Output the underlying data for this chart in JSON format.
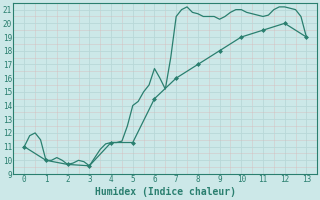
{
  "xlabel": "Humidex (Indice chaleur)",
  "xlim": [
    -0.5,
    13.5
  ],
  "ylim": [
    9,
    21.5
  ],
  "yticks": [
    9,
    10,
    11,
    12,
    13,
    14,
    15,
    16,
    17,
    18,
    19,
    20,
    21
  ],
  "xticks": [
    0,
    1,
    2,
    3,
    4,
    5,
    6,
    7,
    8,
    9,
    10,
    11,
    12,
    13
  ],
  "line1_x": [
    0,
    0.25,
    0.5,
    0.75,
    1.0,
    1.25,
    1.5,
    1.75,
    2.0,
    2.25,
    2.5,
    2.75,
    3.0,
    3.25,
    3.5,
    3.75,
    4.0,
    4.25,
    4.5,
    4.75,
    5.0,
    5.25,
    5.5,
    5.75,
    6.0,
    6.25,
    6.5,
    6.75,
    7.0,
    7.25,
    7.5,
    7.75,
    8.0,
    8.25,
    8.5,
    8.75,
    9.0,
    9.25,
    9.5,
    9.75,
    10.0,
    10.25,
    10.5,
    10.75,
    11.0,
    11.25,
    11.5,
    11.75,
    12.0,
    12.25,
    12.5,
    12.75,
    13.0
  ],
  "line1_y": [
    11,
    11.8,
    12.0,
    11.5,
    10.0,
    10.0,
    10.2,
    10.0,
    9.7,
    9.8,
    10.0,
    9.9,
    9.6,
    10.2,
    10.8,
    11.2,
    11.3,
    11.3,
    11.4,
    12.5,
    14.0,
    14.3,
    15.0,
    15.5,
    16.7,
    16.0,
    15.2,
    17.5,
    20.5,
    21.0,
    21.2,
    20.8,
    20.7,
    20.5,
    20.5,
    20.5,
    20.3,
    20.5,
    20.8,
    21.0,
    21.0,
    20.8,
    20.7,
    20.6,
    20.5,
    20.6,
    21.0,
    21.2,
    21.2,
    21.1,
    21.0,
    20.5,
    19.0
  ],
  "line2_x": [
    0,
    1,
    2,
    3,
    4,
    5,
    6,
    7,
    8,
    9,
    10,
    11,
    12,
    13
  ],
  "line2_y": [
    11,
    10,
    9.7,
    9.6,
    11.3,
    11.3,
    14.5,
    16.0,
    17.0,
    18.0,
    19.0,
    19.5,
    20.0,
    19.0
  ],
  "line_color": "#2a7f6f",
  "bg_color": "#cce8e8",
  "grid_major_color": "#b8d8d8",
  "grid_minor_color": "#d4eaea",
  "markersize": 2.0,
  "linewidth": 0.9,
  "xlabel_fontsize": 7
}
